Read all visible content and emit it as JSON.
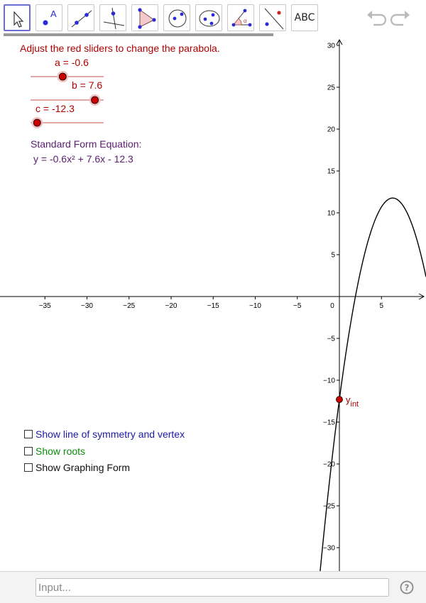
{
  "toolbar": {
    "tools": [
      {
        "name": "move-tool",
        "icon": "cursor-arrow-icon",
        "active": true
      },
      {
        "name": "point-tool",
        "icon": "point-icon",
        "text": "A"
      },
      {
        "name": "line-tool",
        "icon": "line-icon"
      },
      {
        "name": "perpendicular-line-tool",
        "icon": "perpendicular-icon"
      },
      {
        "name": "polygon-tool",
        "icon": "polygon-icon"
      },
      {
        "name": "circle-tool",
        "icon": "circle-icon"
      },
      {
        "name": "ellipse-tool",
        "icon": "ellipse-icon"
      },
      {
        "name": "angle-tool",
        "icon": "angle-icon",
        "text": "α"
      },
      {
        "name": "reflect-tool",
        "icon": "reflect-icon"
      },
      {
        "name": "text-tool",
        "icon": "text-icon",
        "text": "ABC"
      }
    ],
    "undo_icon": "undo-icon",
    "redo_icon": "redo-icon"
  },
  "panel": {
    "instruction": "Adjust the red sliders to change the parabola.",
    "sliders": [
      {
        "name": "a",
        "label": "a = -0.6",
        "value": -0.6,
        "min": -5,
        "max": 5
      },
      {
        "name": "b",
        "label": "b = 7.6",
        "value": 7.6,
        "min": -10,
        "max": 10
      },
      {
        "name": "c",
        "label": "c = -12.3",
        "value": -12.3,
        "min": -15,
        "max": 15
      }
    ],
    "equation_heading": "Standard Form Equation:",
    "equation": "y = -0.6x² + 7.6x - 12.3",
    "checkboxes": [
      {
        "name": "symmetry",
        "label": "Show line of symmetry and vertex",
        "checked": false,
        "color": "#1a1aa6"
      },
      {
        "name": "roots",
        "label": "Show roots",
        "checked": false,
        "color": "#0a8a0a"
      },
      {
        "name": "graphing-form",
        "label": "Show Graphing Form",
        "checked": false,
        "color": "#111111"
      }
    ]
  },
  "graph": {
    "x_ticks": [
      -35,
      -30,
      -25,
      -20,
      -15,
      -10,
      -5,
      5
    ],
    "y_ticks": [
      -30,
      -25,
      -20,
      -15,
      -10,
      -5,
      5,
      10,
      15,
      20,
      25,
      30
    ],
    "origin_label": "0",
    "point_label": "y",
    "point_label_sub": "int",
    "function": {
      "a": -0.6,
      "b": 7.6,
      "c": -12.3
    },
    "point": {
      "x": 0,
      "y": -12.3
    },
    "colors": {
      "axis": "#000000",
      "curve": "#000000",
      "point": "#cc0000",
      "slider": "#cc0000",
      "label": "#a00000",
      "equation": "#5a1d6f"
    }
  },
  "input_bar": {
    "placeholder": "Input...",
    "help_icon": "help-question-icon"
  }
}
